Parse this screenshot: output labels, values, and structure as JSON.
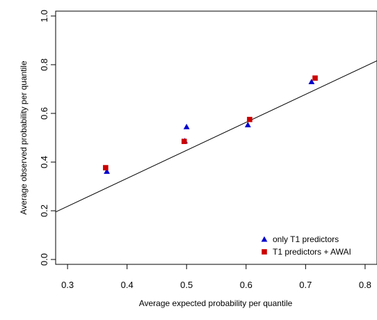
{
  "chart_data": {
    "type": "scatter",
    "xlabel": "Average expected probability per quantile",
    "ylabel": "Average observed probability per quantile",
    "xlim": [
      0.28,
      0.82
    ],
    "ylim": [
      -0.02,
      1.02
    ],
    "x_ticks": [
      0.3,
      0.4,
      0.5,
      0.6,
      0.7,
      0.8
    ],
    "x_tick_labels": [
      "0.3",
      "0.4",
      "0.5",
      "0.6",
      "0.7",
      "0.8"
    ],
    "y_ticks": [
      0.0,
      0.2,
      0.4,
      0.6,
      0.8,
      1.0
    ],
    "y_tick_labels": [
      "0.0",
      "0.2",
      "0.4",
      "0.6",
      "0.8",
      "1.0"
    ],
    "grid": false,
    "legend_position": "bottom-right",
    "series": [
      {
        "name": "only T1 predictors",
        "marker": "triangle",
        "color": "#0000cc",
        "x": [
          0.366,
          0.497,
          0.5,
          0.603,
          0.71
        ],
        "y": [
          0.362,
          0.487,
          0.545,
          0.553,
          0.73
        ]
      },
      {
        "name": "T1 predictors + AWAI",
        "marker": "square",
        "color": "#cc0000",
        "x": [
          0.364,
          0.496,
          0.606,
          0.716
        ],
        "y": [
          0.377,
          0.485,
          0.575,
          0.745
        ]
      }
    ],
    "reference_line": {
      "intercept": -0.1268,
      "slope": 1.15,
      "color": "#000000"
    }
  }
}
